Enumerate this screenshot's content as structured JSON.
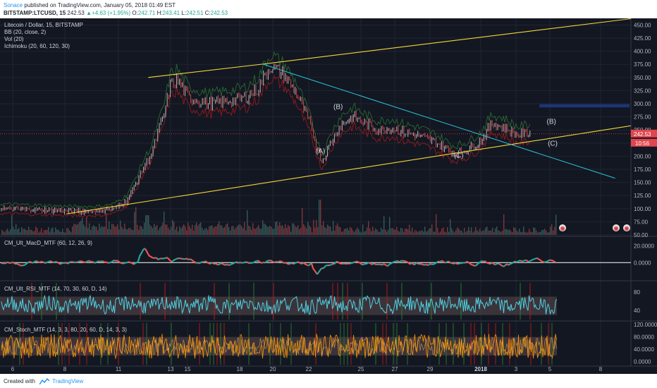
{
  "header": {
    "author": "Sonace",
    "published_text": "published on TradingView.com, January 05, 2018 01:49 EST",
    "symbol": "BITSTAMP:LTCUSD, 15",
    "last": "242.53",
    "change": "+4.63 (+1.95%)",
    "o_label": "O:",
    "o": "242.71",
    "h_label": "H:",
    "h": "243.41",
    "l_label": "L:",
    "l": "242.51",
    "c_label": "C:",
    "c": "242.53"
  },
  "legend": {
    "title": "Litecoin / Dollar, 15, BITSTAMP",
    "indicators": [
      "BB (20, close, 2)",
      "Vol (20)",
      "Ichimoku (20, 60, 120, 30)"
    ]
  },
  "colors": {
    "background": "#131722",
    "grid": "#1f2432",
    "axis_text": "#b2b5be",
    "channel": "#f5d63a",
    "downtrend": "#26c6da",
    "price_up": "#c8c8c8",
    "price_down": "#e04e4e",
    "badge": "#e2454e",
    "macd_up": "#26a69a",
    "macd_down": "#ef5350",
    "rsi": "#4dd0e1",
    "stoch": "#ff9800",
    "zone": "#1e3a8a",
    "brand": "#2196f3"
  },
  "chart_data": [
    {
      "type": "line",
      "name": "price",
      "x_ticks": [
        "6",
        "8",
        "11",
        "13",
        "15",
        "18",
        "20",
        "22",
        "25",
        "27",
        "29",
        "2018",
        "3",
        "5",
        "8"
      ],
      "y_ticks": [
        "450.00",
        "425.00",
        "400.00",
        "375.00",
        "350.00",
        "325.00",
        "300.00",
        "275.00",
        "250.00",
        "225.00",
        "200.00",
        "175.00",
        "150.00",
        "125.00",
        "100.00",
        "75.00",
        "50.00"
      ],
      "ylim": [
        50,
        460
      ],
      "price_path_x": [
        0,
        8,
        12,
        16,
        18,
        20,
        21,
        22,
        23,
        24,
        25,
        26,
        27,
        28,
        30,
        33,
        36,
        39,
        41,
        42,
        43,
        45,
        47,
        49,
        51,
        53,
        54,
        56,
        58,
        60,
        62,
        64,
        66,
        68,
        70,
        72,
        74,
        76,
        78,
        80,
        82,
        84
      ],
      "price_path_y": [
        100,
        97,
        95,
        96,
        100,
        115,
        135,
        160,
        185,
        205,
        245,
        280,
        335,
        345,
        312,
        300,
        305,
        312,
        330,
        355,
        372,
        355,
        320,
        265,
        190,
        240,
        260,
        275,
        262,
        250,
        255,
        245,
        240,
        232,
        220,
        205,
        212,
        228,
        262,
        255,
        240,
        245
      ],
      "last_price": "242.53",
      "second_label": "10:56",
      "wave_labels": [
        "(A)",
        "(B)",
        "(C)",
        "(B)",
        "(C)"
      ],
      "wave_points": [
        {
          "x": 50.8,
          "y": 205
        },
        {
          "x": 53.6,
          "y": 290
        },
        {
          "x": 72.7,
          "y": 197
        },
        {
          "x": 87.4,
          "y": 262
        },
        {
          "x": 87.6,
          "y": 220
        }
      ],
      "channel_upper": [
        {
          "x": 23.5,
          "y": 350
        },
        {
          "x": 42,
          "y": 376
        },
        {
          "x": 100,
          "y": 462
        }
      ],
      "channel_lower": [
        {
          "x": 10.5,
          "y": 90
        },
        {
          "x": 100,
          "y": 258
        }
      ],
      "downtrend": [
        {
          "x": 41.5,
          "y": 376
        },
        {
          "x": 97.5,
          "y": 158
        }
      ],
      "zone_y": [
        293,
        299
      ],
      "zone_x": [
        85.5,
        100
      ]
    },
    {
      "type": "line",
      "name": "CM_Ult_MacD_MTF (60, 12, 26, 9)",
      "y_ticks": [
        "20.0000",
        "0.0000"
      ],
      "ylim": [
        -20,
        28
      ]
    },
    {
      "type": "line",
      "name": "CM_Ult_RSI_MTF (14, 70, 30, 60, D, 14)",
      "y_ticks": [
        "80",
        "40"
      ],
      "ylim": [
        20,
        100
      ],
      "band": [
        30,
        70
      ]
    },
    {
      "type": "line",
      "name": "CM_Stoch_MTF (14, 3, 3, 80, 20, 60, D, 14, 3, 3)",
      "y_ticks": [
        "120.0000",
        "80.0000",
        "40.0000",
        "0.0000"
      ],
      "ylim": [
        -10,
        125
      ],
      "band": [
        20,
        80
      ]
    }
  ],
  "footer": {
    "created_with": "Created with",
    "brand": "TradingView"
  }
}
